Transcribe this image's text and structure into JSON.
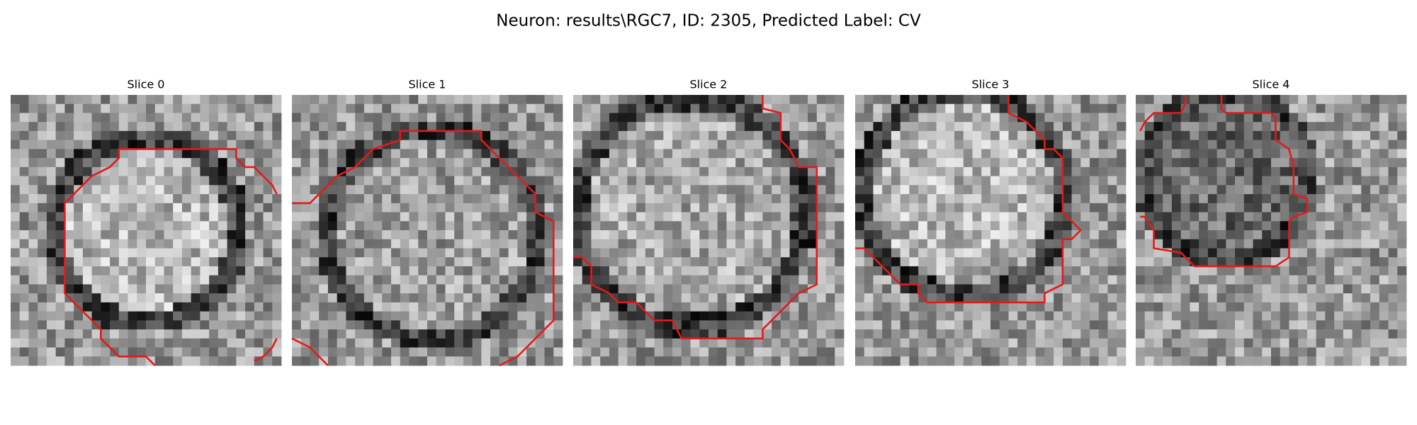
{
  "header": {
    "title": "Neuron: results\\RGC7, ID: 2305, Predicted Label: CV"
  },
  "panels": [
    {
      "title": "Slice 0"
    },
    {
      "title": "Slice 1"
    },
    {
      "title": "Slice 2"
    },
    {
      "title": "Slice 3"
    },
    {
      "title": "Slice 4"
    }
  ]
}
